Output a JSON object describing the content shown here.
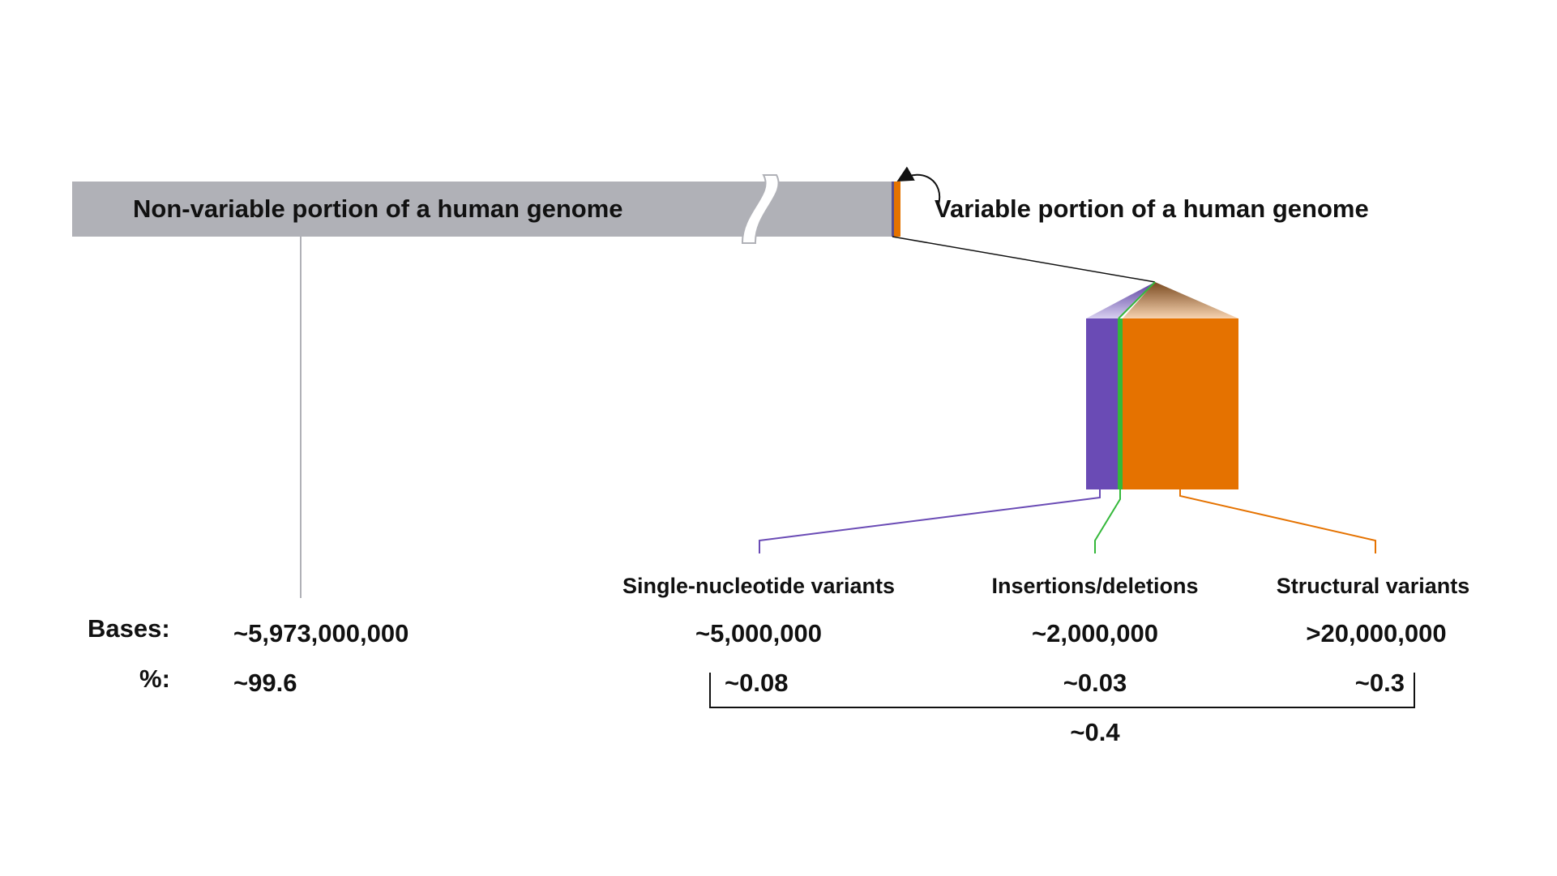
{
  "labels": {
    "non_variable": "Non-variable portion of a human genome",
    "variable": "Variable portion of a human genome"
  },
  "rows": {
    "bases_label": "Bases:",
    "percent_label": "%:"
  },
  "non_variable": {
    "bases": "~5,973,000,000",
    "percent": "~99.6"
  },
  "categories": [
    {
      "name": "Single-nucleotide variants",
      "bases": "~5,000,000",
      "percent": "~0.08"
    },
    {
      "name": "Insertions/deletions",
      "bases": "~2,000,000",
      "percent": "~0.03"
    },
    {
      "name": "Structural variants",
      "bases": ">20,000,000",
      "percent": "~0.3"
    }
  ],
  "variable_total_percent": "~0.4",
  "colors": {
    "non_variable_bar": "#b0b1b7",
    "snv": "#6a4bb5",
    "indel": "#34b83a",
    "structural": "#e57200",
    "text": "#111111"
  }
}
